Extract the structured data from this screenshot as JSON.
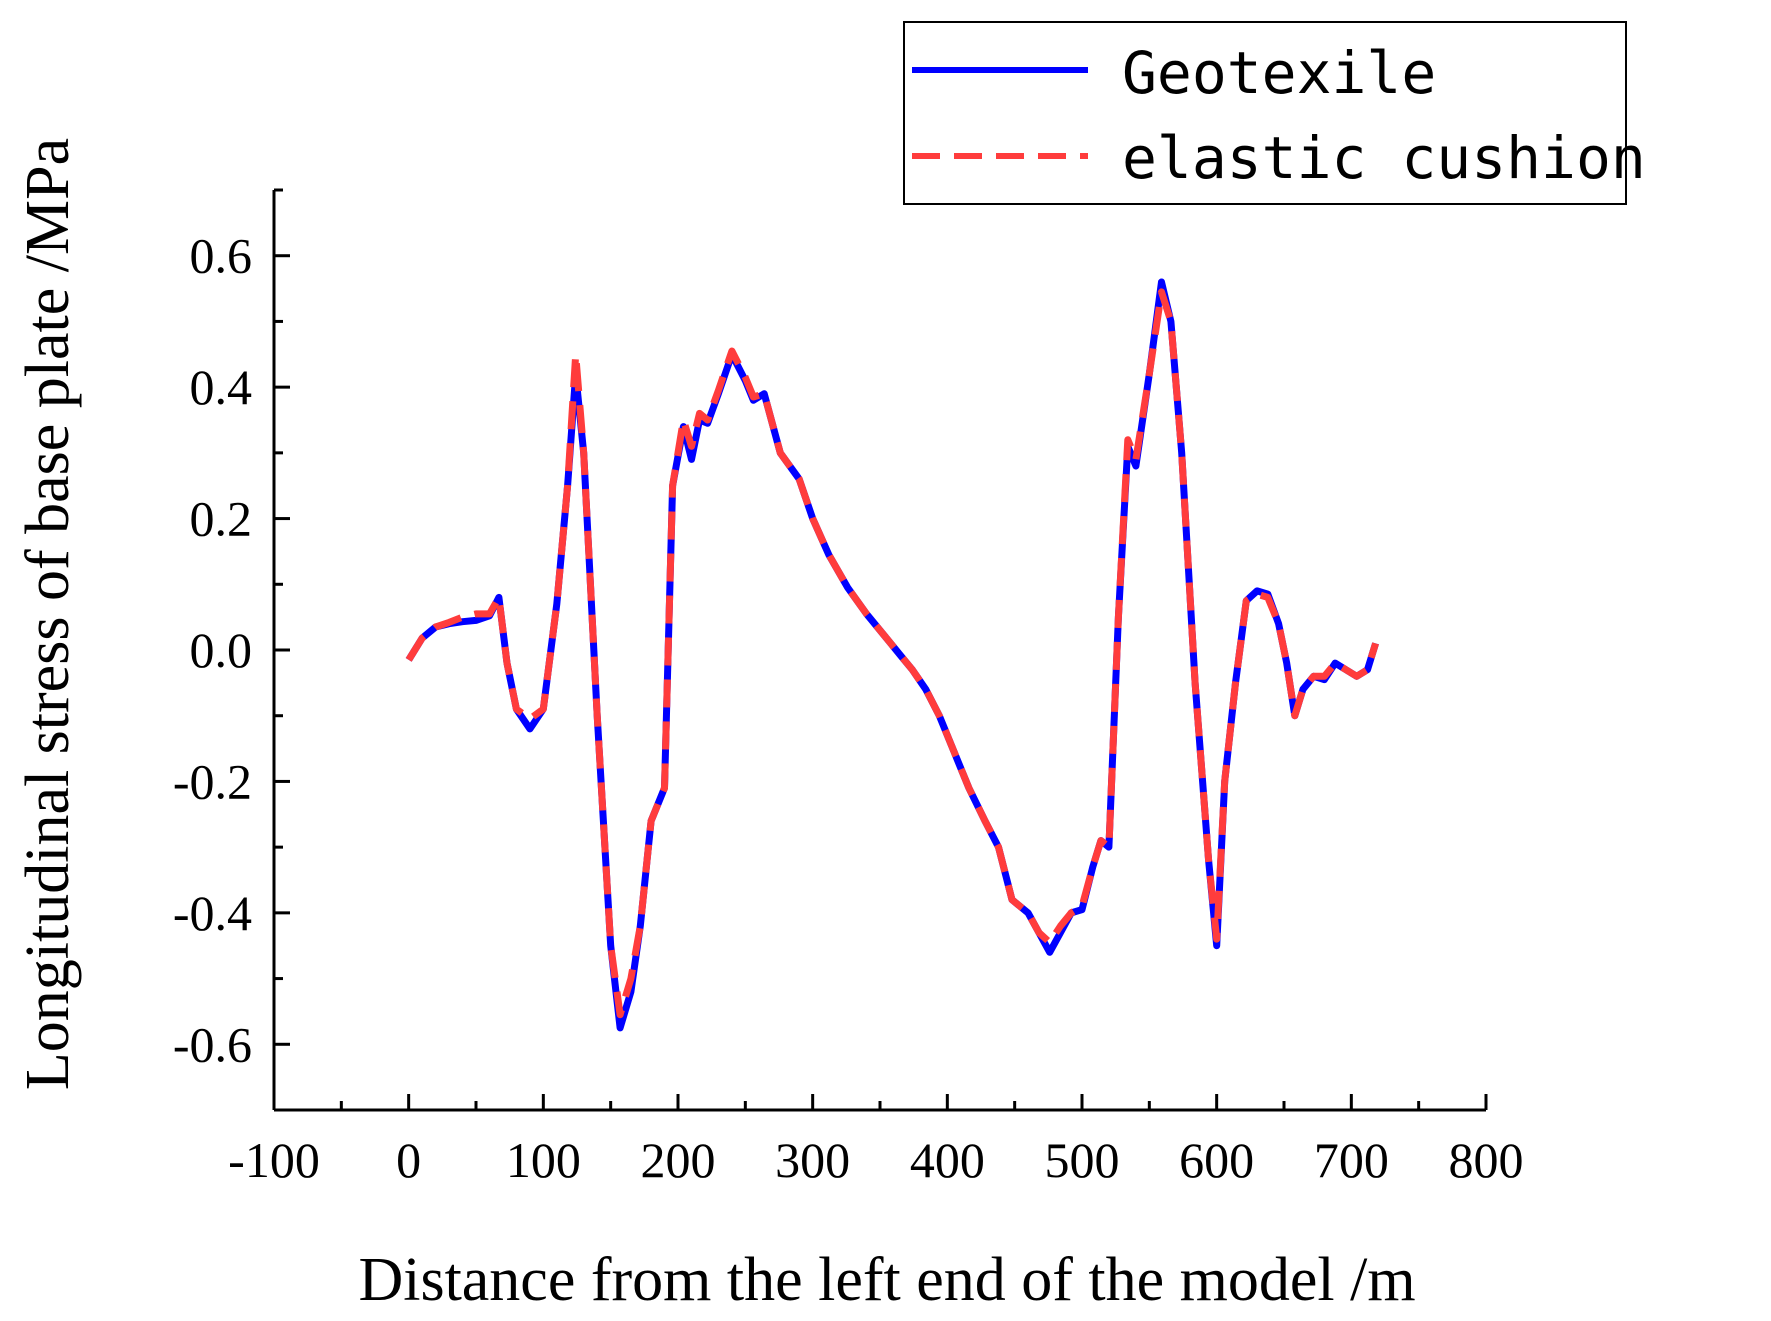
{
  "chart_data": {
    "type": "line",
    "title": "",
    "xlabel": "Distance from the left end of the model /m",
    "ylabel": "Longitudinal stress of base plate /MPa",
    "xlim": [
      -100,
      800
    ],
    "ylim": [
      -0.7,
      0.7
    ],
    "xticks": [
      -100,
      0,
      100,
      200,
      300,
      400,
      500,
      600,
      700,
      800
    ],
    "yticks": [
      -0.6,
      -0.4,
      -0.2,
      0.0,
      0.2,
      0.4,
      0.6
    ],
    "xtick_labels": [
      "-100",
      "0",
      "100",
      "200",
      "300",
      "400",
      "500",
      "600",
      "700",
      "800"
    ],
    "ytick_labels": [
      "-0.6",
      "-0.4",
      "-0.2",
      "0.0",
      "0.2",
      "0.4",
      "0.6"
    ],
    "grid": false,
    "legend_position": "top-right",
    "series": [
      {
        "name": "Geotexile",
        "color": "#0000ff",
        "style": "solid",
        "x": [
          0,
          10,
          20,
          30,
          40,
          50,
          60,
          67,
          73,
          80,
          90,
          100,
          110,
          118,
          124,
          130,
          140,
          150,
          157,
          165,
          172,
          180,
          190,
          196,
          204,
          210,
          216,
          222,
          230,
          240,
          250,
          256,
          264,
          276,
          290,
          300,
          312,
          326,
          340,
          354,
          366,
          374,
          384,
          394,
          406,
          416,
          428,
          438,
          448,
          460,
          468,
          476,
          484,
          492,
          500,
          508,
          514,
          520,
          527,
          534,
          540,
          550,
          559,
          566,
          574,
          584,
          594,
          600,
          606,
          614,
          622,
          630,
          638,
          646,
          652,
          658,
          664,
          672,
          680,
          688,
          696,
          704,
          712,
          718
        ],
        "y": [
          -0.015,
          0.018,
          0.035,
          0.04,
          0.043,
          0.045,
          0.052,
          0.08,
          -0.02,
          -0.09,
          -0.12,
          -0.09,
          0.07,
          0.25,
          0.42,
          0.3,
          -0.1,
          -0.45,
          -0.575,
          -0.52,
          -0.42,
          -0.26,
          -0.21,
          0.25,
          0.34,
          0.29,
          0.35,
          0.345,
          0.39,
          0.45,
          0.41,
          0.38,
          0.39,
          0.3,
          0.26,
          0.2,
          0.145,
          0.095,
          0.055,
          0.02,
          -0.01,
          -0.03,
          -0.06,
          -0.1,
          -0.16,
          -0.21,
          -0.26,
          -0.3,
          -0.38,
          -0.4,
          -0.43,
          -0.46,
          -0.43,
          -0.4,
          -0.395,
          -0.33,
          -0.29,
          -0.3,
          0.05,
          0.31,
          0.28,
          0.42,
          0.56,
          0.5,
          0.3,
          -0.05,
          -0.32,
          -0.45,
          -0.2,
          -0.05,
          0.075,
          0.09,
          0.085,
          0.04,
          -0.02,
          -0.1,
          -0.06,
          -0.04,
          -0.045,
          -0.02,
          -0.03,
          -0.04,
          -0.03,
          0.01
        ]
      },
      {
        "name": "elastic cushion",
        "color": "#ff3c3c",
        "style": "dashed",
        "x": [
          0,
          10,
          20,
          30,
          40,
          50,
          60,
          67,
          73,
          80,
          90,
          100,
          110,
          118,
          124,
          130,
          140,
          150,
          157,
          165,
          172,
          180,
          190,
          196,
          204,
          210,
          216,
          222,
          230,
          240,
          250,
          256,
          264,
          276,
          290,
          300,
          312,
          326,
          340,
          354,
          366,
          374,
          384,
          394,
          406,
          416,
          428,
          438,
          448,
          460,
          468,
          476,
          484,
          492,
          500,
          508,
          514,
          520,
          527,
          534,
          540,
          550,
          559,
          566,
          574,
          584,
          594,
          600,
          606,
          614,
          622,
          630,
          638,
          646,
          652,
          658,
          664,
          672,
          680,
          688,
          696,
          704,
          712,
          718
        ],
        "y": [
          -0.015,
          0.018,
          0.035,
          0.042,
          0.05,
          0.055,
          0.055,
          0.08,
          -0.02,
          -0.09,
          -0.105,
          -0.09,
          0.07,
          0.25,
          0.45,
          0.3,
          -0.1,
          -0.45,
          -0.555,
          -0.5,
          -0.42,
          -0.26,
          -0.21,
          0.25,
          0.35,
          0.31,
          0.36,
          0.35,
          0.395,
          0.455,
          0.415,
          0.385,
          0.39,
          0.3,
          0.26,
          0.2,
          0.145,
          0.095,
          0.055,
          0.02,
          -0.01,
          -0.03,
          -0.06,
          -0.1,
          -0.16,
          -0.21,
          -0.26,
          -0.3,
          -0.38,
          -0.4,
          -0.43,
          -0.445,
          -0.42,
          -0.4,
          -0.39,
          -0.33,
          -0.29,
          -0.3,
          0.05,
          0.32,
          0.29,
          0.42,
          0.545,
          0.5,
          0.3,
          -0.05,
          -0.32,
          -0.44,
          -0.2,
          -0.05,
          0.075,
          0.085,
          0.08,
          0.04,
          -0.02,
          -0.1,
          -0.06,
          -0.04,
          -0.04,
          -0.02,
          -0.03,
          -0.04,
          -0.03,
          0.01
        ]
      }
    ]
  }
}
